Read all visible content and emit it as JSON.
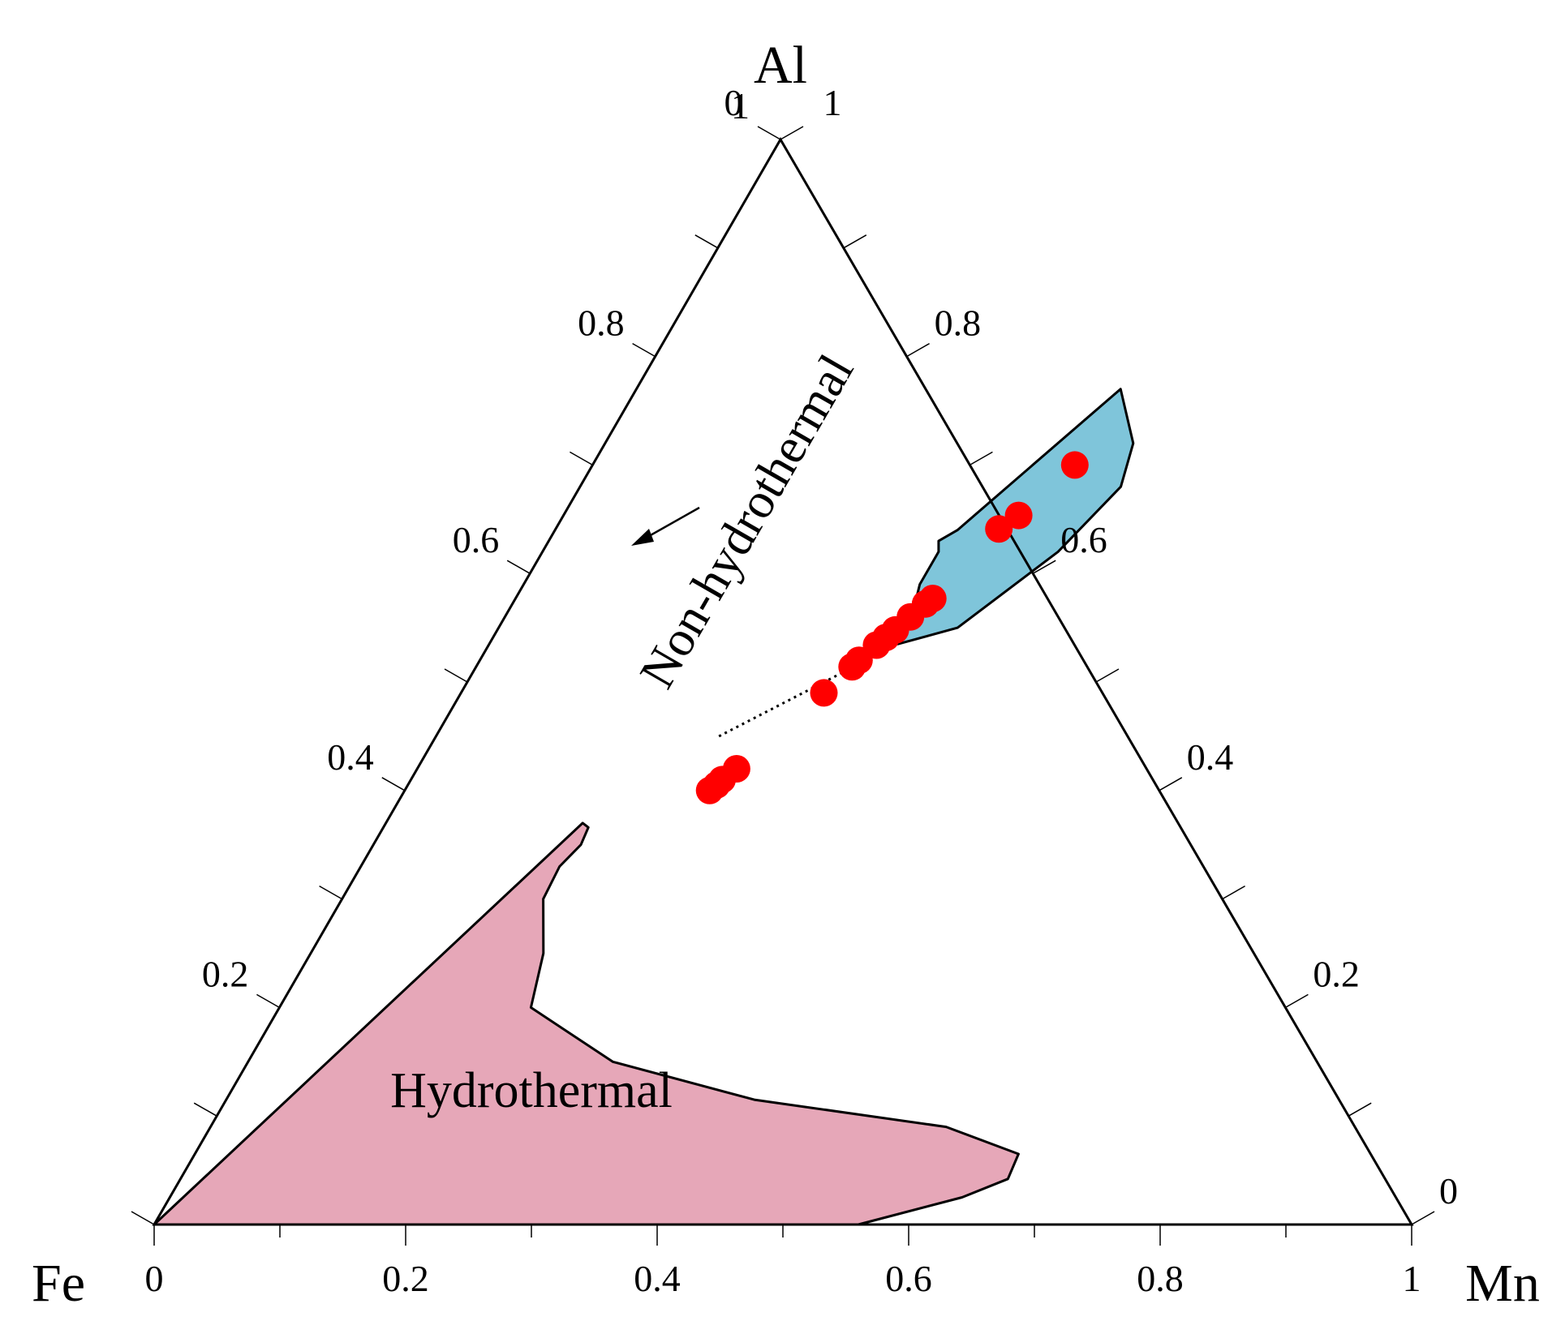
{
  "chart_data": {
    "type": "scatter",
    "subtype": "ternary",
    "vertices": {
      "top": "Al",
      "left": "Fe",
      "right": "Mn"
    },
    "ticks": {
      "bottom": [
        "0",
        "0.2",
        "0.4",
        "0.6",
        "0.8",
        "1"
      ],
      "left": [
        "1",
        "0.8",
        "0.6",
        "0.4",
        "0.2",
        "0"
      ],
      "right": [
        "0",
        "0.2",
        "0.4",
        "0.6",
        "0.8",
        "1"
      ]
    },
    "regions": [
      {
        "name": "Hydrothermal",
        "color": "#e6a7b8",
        "boundary": [
          {
            "al": 0.37,
            "mn": 0.1565
          },
          {
            "al": 0.366,
            "mn": 0.163
          },
          {
            "al": 0.35,
            "mn": 0.165
          },
          {
            "al": 0.33,
            "mn": 0.158
          },
          {
            "al": 0.3,
            "mn": 0.16
          },
          {
            "al": 0.25,
            "mn": 0.185
          },
          {
            "al": 0.2,
            "mn": 0.2
          },
          {
            "al": 0.15,
            "mn": 0.29
          },
          {
            "al": 0.115,
            "mn": 0.42
          },
          {
            "al": 0.09,
            "mn": 0.585
          },
          {
            "al": 0.065,
            "mn": 0.655
          },
          {
            "al": 0.042,
            "mn": 0.658
          },
          {
            "al": 0.025,
            "mn": 0.63
          },
          {
            "al": 0.0,
            "mn": 0.56
          },
          {
            "al": 0.0,
            "mn": 0.0
          }
        ]
      },
      {
        "name": "Non-hydrothermal",
        "color": "#7fc5da",
        "boundary": [
          {
            "al": 0.77,
            "mn": 0.385
          },
          {
            "al": 0.72,
            "mn": 0.42
          },
          {
            "al": 0.68,
            "mn": 0.43
          },
          {
            "al": 0.62,
            "mn": 0.41
          },
          {
            "al": 0.55,
            "mn": 0.365
          },
          {
            "al": 0.535,
            "mn": 0.325
          },
          {
            "al": 0.555,
            "mn": 0.325
          },
          {
            "al": 0.59,
            "mn": 0.315
          },
          {
            "al": 0.62,
            "mn": 0.315
          },
          {
            "al": 0.63,
            "mn": 0.31
          },
          {
            "al": 0.64,
            "mn": 0.32
          }
        ]
      }
    ],
    "points": [
      {
        "al": 0.7,
        "mn": 0.3835
      },
      {
        "al": 0.6535,
        "mn": 0.362
      },
      {
        "al": 0.641,
        "mn": 0.3525
      },
      {
        "al": 0.577,
        "mn": 0.3318
      },
      {
        "al": 0.572,
        "mn": 0.3285
      },
      {
        "al": 0.56,
        "mn": 0.3225
      },
      {
        "al": 0.548,
        "mn": 0.3165
      },
      {
        "al": 0.541,
        "mn": 0.3125
      },
      {
        "al": 0.534,
        "mn": 0.3085
      },
      {
        "al": 0.52,
        "mn": 0.3015
      },
      {
        "al": 0.514,
        "mn": 0.299
      },
      {
        "al": 0.49,
        "mn": 0.2885
      },
      {
        "al": 0.42,
        "mn": 0.254
      },
      {
        "al": 0.41,
        "mn": 0.2475
      },
      {
        "al": 0.405,
        "mn": 0.2455
      },
      {
        "al": 0.4,
        "mn": 0.2425
      }
    ],
    "point_color": "#ff0000",
    "annotations": [
      {
        "text": "Hydrothermal",
        "region": "Hydrothermal"
      },
      {
        "text": "Non-hydrothermal",
        "region": "Non-hydrothermal",
        "arrow": true
      }
    ]
  }
}
